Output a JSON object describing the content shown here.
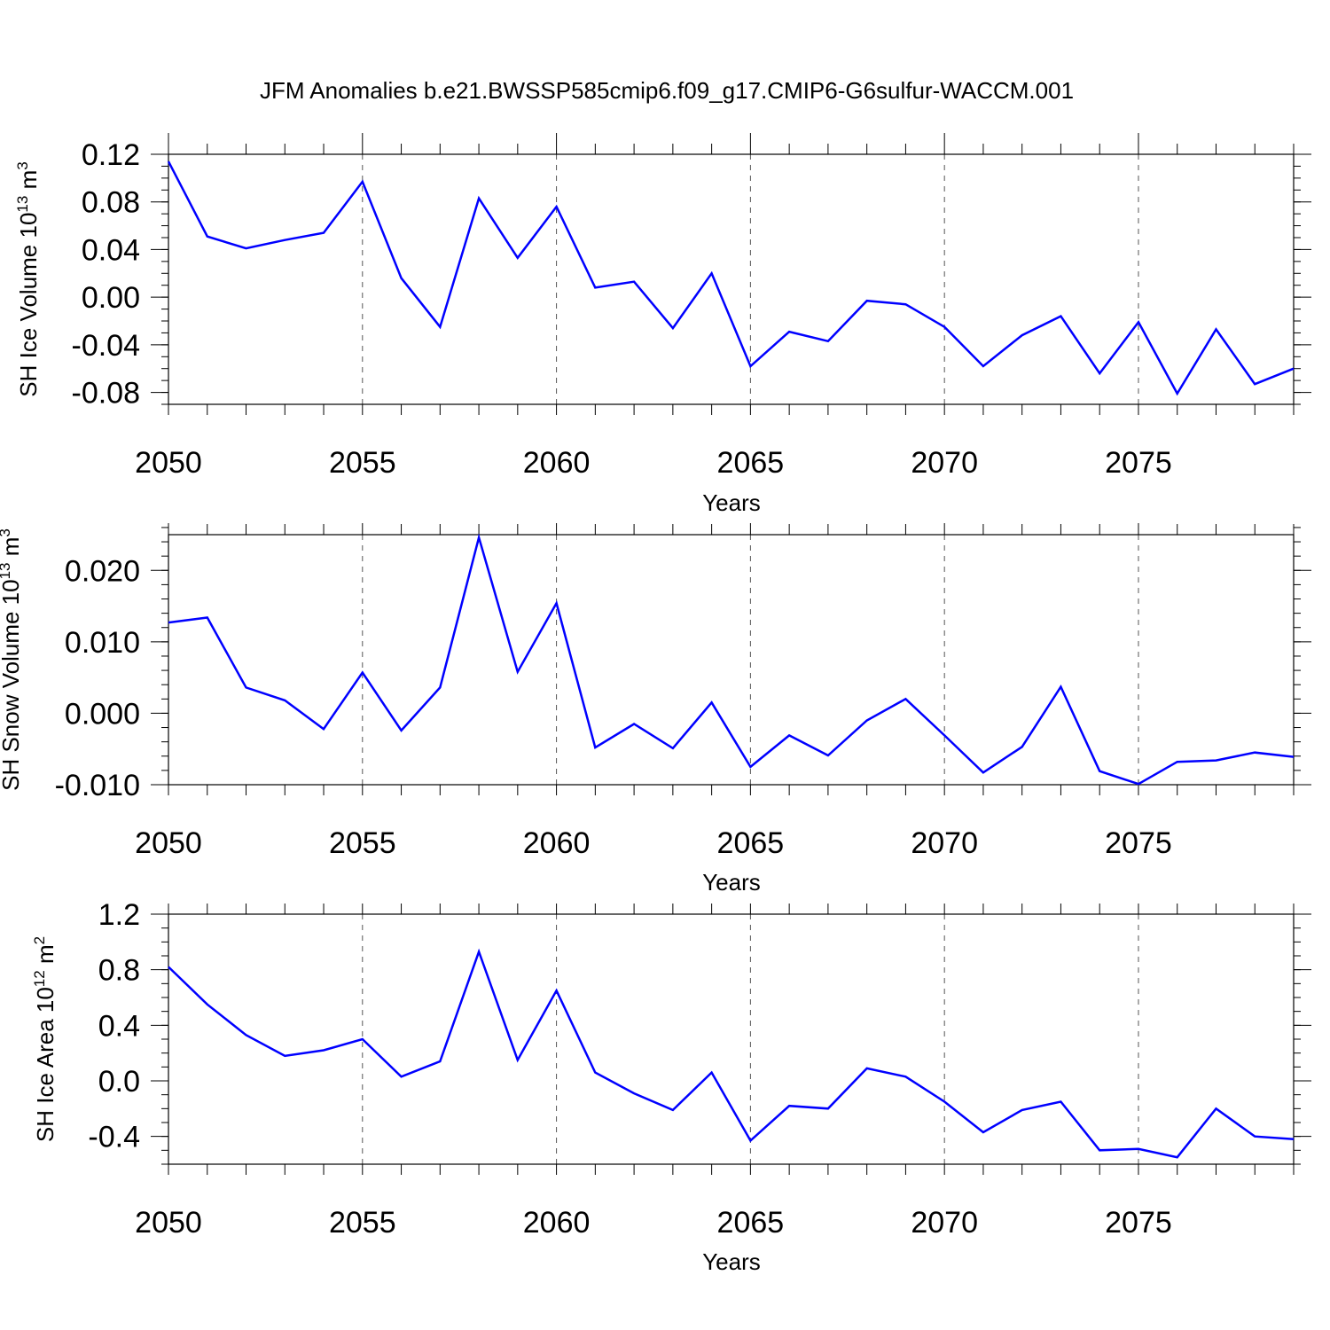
{
  "chart_data": [
    {
      "type": "line",
      "title": "JFM Anomalies b.e21.BWSSP585cmip6.f09_g17.CMIP6-G6sulfur-WACCM.001",
      "ylabel": "SH Ice Volume 10",
      "ylabel_exp": "13",
      "ylabel_unit": " m",
      "ylabel_unit_exp": "3",
      "xlabel": "Years",
      "xlim": [
        2050,
        2079
      ],
      "ylim": [
        -0.09,
        0.12
      ],
      "y_ticks": [
        0.12,
        0.08,
        0.04,
        0.0,
        -0.04,
        -0.08
      ],
      "y_tick_labels": [
        "0.12",
        "0.08",
        "0.04",
        "0.00",
        "-0.04",
        "-0.08"
      ],
      "y_minor_step": 0.01,
      "x_ticks": [
        2050,
        2055,
        2060,
        2065,
        2070,
        2075
      ],
      "x_tick_labels": [
        "2050",
        "2055",
        "2060",
        "2065",
        "2070",
        "2075"
      ],
      "grid": "vertical dashed at major x ticks",
      "color": "#0000ff",
      "x": [
        2050,
        2051,
        2052,
        2053,
        2054,
        2055,
        2056,
        2057,
        2058,
        2059,
        2060,
        2061,
        2062,
        2063,
        2064,
        2065,
        2066,
        2067,
        2068,
        2069,
        2070,
        2071,
        2072,
        2073,
        2074,
        2075,
        2076,
        2077,
        2078,
        2079
      ],
      "values": [
        0.114,
        0.051,
        0.041,
        0.048,
        0.054,
        0.097,
        0.016,
        -0.025,
        0.083,
        0.033,
        0.076,
        0.008,
        0.013,
        -0.026,
        0.02,
        -0.058,
        -0.029,
        -0.037,
        -0.003,
        -0.006,
        -0.025,
        -0.058,
        -0.032,
        -0.016,
        -0.064,
        -0.021,
        -0.081,
        -0.027,
        -0.073,
        -0.06
      ]
    },
    {
      "type": "line",
      "title": "",
      "ylabel": "SH Snow Volume 10",
      "ylabel_exp": "13",
      "ylabel_unit": " m",
      "ylabel_unit_exp": "3",
      "xlabel": "Years",
      "xlim": [
        2050,
        2079
      ],
      "ylim": [
        -0.01,
        0.025
      ],
      "y_ticks": [
        0.02,
        0.01,
        0.0,
        -0.01
      ],
      "y_tick_labels": [
        "0.020",
        "0.010",
        "0.000",
        "-0.010"
      ],
      "y_minor_step": 0.002,
      "x_ticks": [
        2050,
        2055,
        2060,
        2065,
        2070,
        2075
      ],
      "x_tick_labels": [
        "2050",
        "2055",
        "2060",
        "2065",
        "2070",
        "2075"
      ],
      "grid": "vertical dashed at major x ticks",
      "color": "#0000ff",
      "x": [
        2050,
        2051,
        2052,
        2053,
        2054,
        2055,
        2056,
        2057,
        2058,
        2059,
        2060,
        2061,
        2062,
        2063,
        2064,
        2065,
        2066,
        2067,
        2068,
        2069,
        2070,
        2071,
        2072,
        2073,
        2074,
        2075,
        2076,
        2077,
        2078,
        2079
      ],
      "values": [
        0.0127,
        0.0134,
        0.0036,
        0.0018,
        -0.0022,
        0.0057,
        -0.0024,
        0.0036,
        0.0246,
        0.0058,
        0.0154,
        -0.0048,
        -0.0015,
        -0.0049,
        0.0015,
        -0.0075,
        -0.0031,
        -0.0059,
        -0.001,
        0.002,
        -0.0031,
        -0.0083,
        -0.0047,
        0.0037,
        -0.0081,
        -0.0099,
        -0.0068,
        -0.0066,
        -0.0055,
        -0.0061
      ]
    },
    {
      "type": "line",
      "title": "",
      "ylabel": "SH Ice Area 10",
      "ylabel_exp": "12",
      "ylabel_unit": " m",
      "ylabel_unit_exp": "2",
      "xlabel": "Years",
      "xlim": [
        2050,
        2079
      ],
      "ylim": [
        -0.6,
        1.2
      ],
      "y_ticks": [
        1.2,
        0.8,
        0.4,
        0.0,
        -0.4
      ],
      "y_tick_labels": [
        "1.2",
        "0.8",
        "0.4",
        "0.0",
        "-0.4"
      ],
      "y_minor_step": 0.1,
      "x_ticks": [
        2050,
        2055,
        2060,
        2065,
        2070,
        2075
      ],
      "x_tick_labels": [
        "2050",
        "2055",
        "2060",
        "2065",
        "2070",
        "2075"
      ],
      "grid": "vertical dashed at major x ticks",
      "color": "#0000ff",
      "x": [
        2050,
        2051,
        2052,
        2053,
        2054,
        2055,
        2056,
        2057,
        2058,
        2059,
        2060,
        2061,
        2062,
        2063,
        2064,
        2065,
        2066,
        2067,
        2068,
        2069,
        2070,
        2071,
        2072,
        2073,
        2074,
        2075,
        2076,
        2077,
        2078,
        2079
      ],
      "values": [
        0.82,
        0.55,
        0.33,
        0.18,
        0.22,
        0.3,
        0.03,
        0.14,
        0.93,
        0.15,
        0.65,
        0.06,
        -0.09,
        -0.21,
        0.06,
        -0.43,
        -0.18,
        -0.2,
        0.09,
        0.03,
        -0.15,
        -0.37,
        -0.21,
        -0.15,
        -0.5,
        -0.49,
        -0.55,
        -0.2,
        -0.4,
        -0.42
      ]
    }
  ]
}
